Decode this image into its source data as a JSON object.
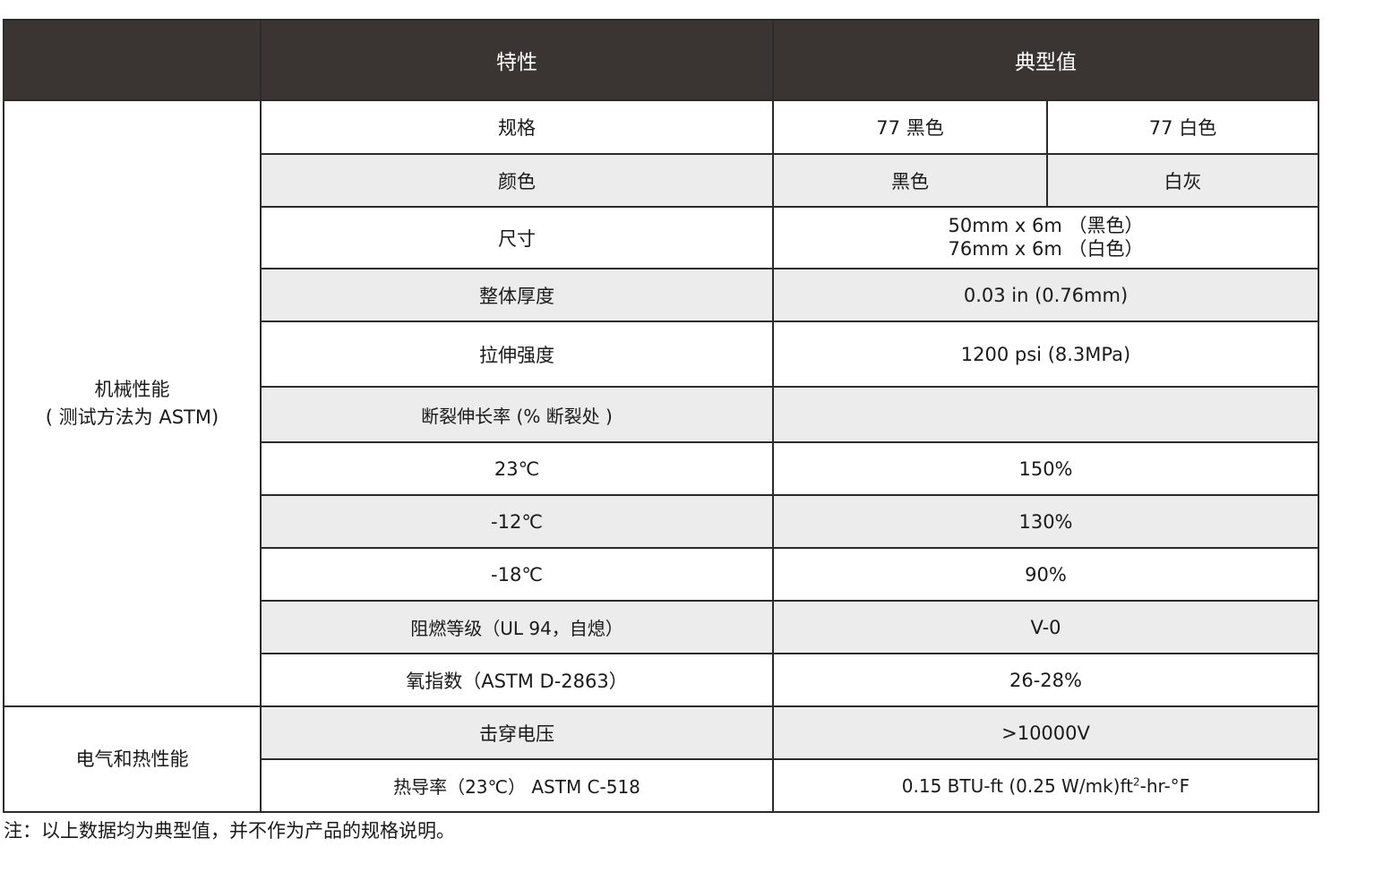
{
  "header": {
    "blank": "",
    "property": "特性",
    "typical": "典型值"
  },
  "categories": {
    "mechanical_line1": "机械性能",
    "mechanical_line2": "( 测试方法为 ASTM)",
    "electrical": "电气和热性能"
  },
  "rows": {
    "spec": {
      "label": "规格",
      "black": "77 黑色",
      "white": "77 白色"
    },
    "color": {
      "label": "颜色",
      "black": "黑色",
      "white": "白灰"
    },
    "size": {
      "label": "尺寸",
      "line1": "50mm x 6m （黑色）",
      "line2": "76mm x 6m （白色）"
    },
    "thickness": {
      "label": "整体厚度",
      "value": "0.03 in (0.76mm)"
    },
    "tensile": {
      "label": "拉伸强度",
      "value": "1200 psi (8.3MPa)"
    },
    "elongation": {
      "label": "断裂伸长率 (% 断裂处 )",
      "value": ""
    },
    "t23": {
      "label": "23℃",
      "value": "150%"
    },
    "tm12": {
      "label": "-12℃",
      "value": "130%"
    },
    "tm18": {
      "label": "-18℃",
      "value": "90%"
    },
    "flame": {
      "label": "阻燃等级（UL 94，自熄）",
      "value": "V-0"
    },
    "oxygen": {
      "label": "氧指数（ASTM D-2863）",
      "value": "26-28%"
    },
    "breakdown": {
      "label": "击穿电压",
      "value": ">10000V"
    },
    "thermal": {
      "label": "热导率（23℃） ASTM C-518",
      "value_pre": "0.15 BTU-ft (0.25 W/mk)ft",
      "sup": "2",
      "value_post": "-hr-°F"
    }
  },
  "note": "注：以上数据均为典型值，并不作为产品的规格说明。",
  "colors": {
    "header_bg": "#3a3532",
    "row_alt_bg": "#ececec",
    "border": "#2b2b2b"
  }
}
